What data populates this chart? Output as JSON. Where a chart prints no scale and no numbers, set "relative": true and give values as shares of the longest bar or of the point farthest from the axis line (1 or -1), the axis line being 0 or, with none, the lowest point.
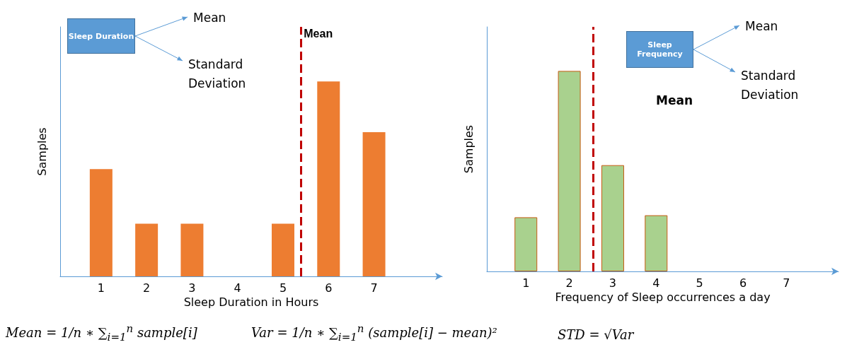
{
  "chart_data": [
    {
      "type": "bar",
      "relative": true,
      "xlabel": "Sleep Duration in Hours",
      "ylabel": "Samples",
      "x": [
        1,
        2,
        3,
        4,
        5,
        6,
        7
      ],
      "values": [
        0.55,
        0.27,
        0.27,
        0,
        0.27,
        1,
        0.74
      ],
      "color": "#ed7d31",
      "xlim": [
        0.1,
        8.5
      ],
      "xticks": [
        1,
        2,
        3,
        4,
        5,
        6,
        7
      ],
      "grid": false,
      "ref_lines": [
        {
          "axis": "x",
          "value": 5.4,
          "label": "Mean",
          "color": "#c00000",
          "line_style": "dashed"
        }
      ],
      "annotations": [
        "Sleep Duration",
        "Mean",
        "Standard Deviation",
        "Mean = 1/n ∗ ∑$_{i=1}$$^{n}$ sample[i]",
        "Var = 1/n ∗ ∑$_{i=1}$$^{n}$ (sample[i] − mean)²"
      ]
    },
    {
      "type": "bar",
      "relative": true,
      "xlabel": "Frequency of Sleep occurrences a day",
      "ylabel": "Samples",
      "x": [
        1,
        2,
        3,
        4,
        5,
        6,
        7
      ],
      "values": [
        0.27,
        1,
        0.53,
        0.28,
        0,
        0,
        0
      ],
      "color": "#a9d18e",
      "xlim": [
        0.1,
        8.2
      ],
      "xticks": [
        1,
        2,
        3,
        4,
        5,
        6,
        7
      ],
      "grid": false,
      "ref_lines": [
        {
          "axis": "x",
          "value": 2.55,
          "color": "#c00000",
          "line_style": "dashed"
        }
      ],
      "annotations": [
        "Sleep Frequency",
        "Mean",
        "Standard Deviation",
        "Mean",
        "STD = √Var"
      ]
    }
  ]
}
